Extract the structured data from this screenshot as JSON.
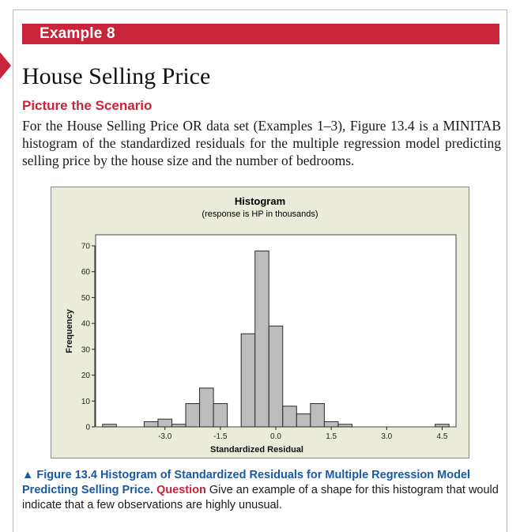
{
  "header": {
    "banner_label": "Example 8",
    "title": "House Selling Price",
    "subhead": "Picture the Scenario",
    "body": "For the House Selling Price OR data set (Examples 1–3), Figure 13.4 is a MINITAB histogram of the standardized residuals for the multiple regression model predicting selling price by the house size and the number of bedrooms."
  },
  "colors": {
    "accent": "#c8243a",
    "caption_blue": "#1a5aa0",
    "chart_bg": "#ebebd9",
    "bar_fill": "#bdbdbd"
  },
  "chart_data": {
    "type": "bar",
    "title": "Histogram",
    "subtitle": "(response is HP in thousands)",
    "xlabel": "Standardized Residual",
    "ylabel": "Frequency",
    "bin_width": 0.375,
    "bins": [
      {
        "center": -4.5,
        "count": 1
      },
      {
        "center": -3.375,
        "count": 2
      },
      {
        "center": -3.0,
        "count": 3
      },
      {
        "center": -2.625,
        "count": 1
      },
      {
        "center": -2.25,
        "count": 9
      },
      {
        "center": -1.875,
        "count": 15
      },
      {
        "center": -1.5,
        "count": 9
      },
      {
        "center": -0.75,
        "count": 36
      },
      {
        "center": -0.375,
        "count": 68
      },
      {
        "center": 0.0,
        "count": 39
      },
      {
        "center": 0.375,
        "count": 8
      },
      {
        "center": 0.75,
        "count": 5
      },
      {
        "center": 1.125,
        "count": 9
      },
      {
        "center": 1.5,
        "count": 2
      },
      {
        "center": 1.875,
        "count": 1
      },
      {
        "center": 4.5,
        "count": 1
      }
    ],
    "xlim": [
      -4.875,
      4.875
    ],
    "ylim": [
      0,
      70
    ],
    "xticks": [
      {
        "value": -3.0,
        "label": "-3.0"
      },
      {
        "value": -1.5,
        "label": "-1.5"
      },
      {
        "value": 0.0,
        "label": "0.0"
      },
      {
        "value": 1.5,
        "label": "1.5"
      },
      {
        "value": 3.0,
        "label": "3.0"
      },
      {
        "value": 4.5,
        "label": "4.5"
      }
    ],
    "yticks": [
      0,
      10,
      20,
      30,
      40,
      50,
      60,
      70
    ]
  },
  "caption": {
    "lead": "▲ Figure 13.4 Histogram of Standardized Residuals for Multiple Regression Model Predicting Selling Price.",
    "question_label": "Question",
    "question_text": "Give an example of a shape for this histogram that would indicate that a few observations are highly unusual."
  }
}
